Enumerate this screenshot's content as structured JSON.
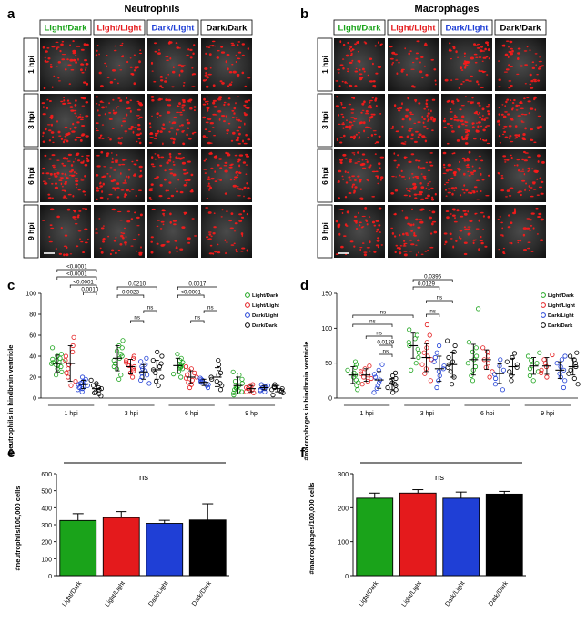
{
  "panel_labels": [
    "a",
    "b",
    "c",
    "d",
    "e",
    "f"
  ],
  "image_panels": [
    {
      "title": "Neutrophils",
      "conditions": [
        "Light/Dark",
        "Light/Light",
        "Dark/Light",
        "Dark/Dark"
      ],
      "timepoints": [
        "1 hpi",
        "3 hpi",
        "6 hpi",
        "9 hpi"
      ]
    },
    {
      "title": "Macrophages",
      "conditions": [
        "Light/Dark",
        "Light/Light",
        "Dark/Light",
        "Dark/Dark"
      ],
      "timepoints": [
        "1 hpi",
        "3 hpi",
        "6 hpi",
        "9 hpi"
      ]
    }
  ],
  "colors": {
    "Light/Dark": "#1aa31a",
    "Light/Light": "#e41a1c",
    "Dark/Light": "#1f3fd6",
    "Dark/Dark": "#000000"
  },
  "chart_data": [
    {
      "type": "scatter",
      "ylabel": "#neutrophils in hindbrain ventricle",
      "ylim": [
        0,
        100
      ],
      "yticks": [
        "0",
        "20",
        "40",
        "60",
        "80",
        "100"
      ],
      "groups": [
        "1 hpi",
        "3 hpi",
        "6 hpi",
        "9 hpi"
      ],
      "legend": [
        "Light/Dark",
        "Light/Light",
        "Dark/Light",
        "Dark/Dark"
      ],
      "legend_position": "top-right",
      "series": [
        {
          "name": "Light/Dark",
          "groups": [
            {
              "points": [
                22,
                25,
                28,
                30,
                31,
                32,
                33,
                34,
                35,
                36,
                37,
                38,
                40,
                42,
                48
              ],
              "mean": 33,
              "sd": 8
            },
            {
              "points": [
                18,
                22,
                28,
                30,
                33,
                36,
                38,
                40,
                42,
                45,
                48,
                50,
                55
              ],
              "mean": 38,
              "sd": 12
            },
            {
              "points": [
                20,
                23,
                25,
                28,
                29,
                30,
                31,
                32,
                34,
                36,
                38,
                42
              ],
              "mean": 31,
              "sd": 7
            },
            {
              "points": [
                3,
                5,
                6,
                7,
                8,
                9,
                10,
                11,
                12,
                14,
                16,
                18,
                22,
                25
              ],
              "mean": 12,
              "sd": 8
            }
          ]
        },
        {
          "name": "Light/Light",
          "groups": [
            {
              "points": [
                12,
                16,
                20,
                24,
                28,
                32,
                36,
                40,
                44,
                50,
                58
              ],
              "mean": 33,
              "sd": 17
            },
            {
              "points": [
                20,
                24,
                26,
                28,
                30,
                31,
                32,
                34,
                36,
                38,
                40
              ],
              "mean": 30,
              "sd": 7
            },
            {
              "points": [
                10,
                13,
                15,
                17,
                19,
                20,
                22,
                24,
                26,
                28,
                30
              ],
              "mean": 20,
              "sd": 6
            },
            {
              "points": [
                5,
                6,
                7,
                8,
                9,
                10,
                11,
                12,
                13
              ],
              "mean": 9,
              "sd": 3
            }
          ]
        },
        {
          "name": "Dark/Light",
          "groups": [
            {
              "points": [
                6,
                8,
                9,
                10,
                11,
                12,
                13,
                14,
                15,
                16,
                18,
                20
              ],
              "mean": 13,
              "sd": 4
            },
            {
              "points": [
                14,
                17,
                20,
                22,
                24,
                26,
                28,
                30,
                32,
                35,
                38
              ],
              "mean": 25,
              "sd": 7
            },
            {
              "points": [
                10,
                12,
                13,
                14,
                15,
                16,
                17,
                18,
                19
              ],
              "mean": 15,
              "sd": 3
            },
            {
              "points": [
                6,
                7,
                8,
                9,
                10,
                11,
                12,
                13
              ],
              "mean": 10,
              "sd": 2
            }
          ]
        },
        {
          "name": "Dark/Dark",
          "groups": [
            {
              "points": [
                2,
                4,
                5,
                6,
                8,
                9,
                10,
                12,
                14,
                17
              ],
              "mean": 9,
              "sd": 5
            },
            {
              "points": [
                12,
                16,
                20,
                24,
                27,
                30,
                33,
                36,
                40,
                44
              ],
              "mean": 27,
              "sd": 9
            },
            {
              "points": [
                8,
                12,
                14,
                16,
                18,
                20,
                22,
                24,
                28,
                32,
                36
              ],
              "mean": 20,
              "sd": 9
            },
            {
              "points": [
                3,
                5,
                6,
                7,
                8,
                9,
                10,
                11,
                13
              ],
              "mean": 9,
              "sd": 3
            }
          ]
        }
      ],
      "comparisons": [
        {
          "group": 0,
          "from": 0,
          "to": 3,
          "label": "<0.0001"
        },
        {
          "group": 0,
          "from": 0,
          "to": 3,
          "label": "<0.0001"
        },
        {
          "group": 0,
          "from": 1,
          "to": 2,
          "label": "<0.0001"
        },
        {
          "group": 0,
          "from": 1,
          "to": 3,
          "label": "0.0010"
        },
        {
          "group": 1,
          "from": 0,
          "to": 3,
          "label": "0.0210"
        },
        {
          "group": 1,
          "from": 0,
          "to": 2,
          "label": "0.0023"
        },
        {
          "group": 1,
          "from": 1,
          "to": 2,
          "label": "ns"
        },
        {
          "group": 1,
          "from": 1,
          "to": 3,
          "label": "ns"
        },
        {
          "group": 2,
          "from": 0,
          "to": 3,
          "label": "0.0017"
        },
        {
          "group": 2,
          "from": 0,
          "to": 2,
          "label": "<0.0001"
        },
        {
          "group": 2,
          "from": 1,
          "to": 2,
          "label": "ns"
        },
        {
          "group": 2,
          "from": 1,
          "to": 3,
          "label": "ns"
        }
      ]
    },
    {
      "type": "scatter",
      "ylabel": "#macrophages in hindbrain ventricle",
      "ylim": [
        0,
        150
      ],
      "yticks": [
        "0",
        "50",
        "100",
        "150"
      ],
      "groups": [
        "1 hpi",
        "3 hpi",
        "6 hpi",
        "9 hpi"
      ],
      "legend": [
        "Light/Dark",
        "Light/Light",
        "Dark/Light",
        "Dark/Dark"
      ],
      "legend_position": "top-right",
      "series": [
        {
          "name": "Light/Dark",
          "groups": [
            {
              "points": [
                12,
                18,
                22,
                26,
                30,
                33,
                36,
                40,
                44,
                48,
                52
              ],
              "mean": 33,
              "sd": 12
            },
            {
              "points": [
                40,
                50,
                58,
                65,
                70,
                75,
                80,
                85,
                90,
                98
              ],
              "mean": 75,
              "sd": 18
            },
            {
              "points": [
                25,
                32,
                40,
                45,
                50,
                55,
                60,
                66,
                72,
                80,
                128
              ],
              "mean": 55,
              "sd": 22
            },
            {
              "points": [
                25,
                32,
                38,
                42,
                46,
                50,
                54,
                60,
                65
              ],
              "mean": 46,
              "sd": 12
            }
          ]
        },
        {
          "name": "Light/Light",
          "groups": [
            {
              "points": [
                20,
                24,
                28,
                30,
                33,
                35,
                38,
                42,
                46
              ],
              "mean": 33,
              "sd": 9
            },
            {
              "points": [
                25,
                35,
                42,
                48,
                55,
                60,
                65,
                72,
                80,
                90,
                105
              ],
              "mean": 58,
              "sd": 20
            },
            {
              "points": [
                30,
                38,
                44,
                50,
                55,
                60,
                66,
                72
              ],
              "mean": 55,
              "sd": 14
            },
            {
              "points": [
                30,
                36,
                40,
                45,
                50,
                55,
                62
              ],
              "mean": 46,
              "sd": 12
            }
          ]
        },
        {
          "name": "Dark/Light",
          "groups": [
            {
              "points": [
                8,
                14,
                18,
                22,
                26,
                30,
                34,
                40,
                48
              ],
              "mean": 26,
              "sd": 12
            },
            {
              "points": [
                15,
                25,
                32,
                38,
                42,
                46,
                52,
                58,
                65,
                75
              ],
              "mean": 42,
              "sd": 18
            },
            {
              "points": [
                12,
                20,
                28,
                34,
                40,
                46,
                55
              ],
              "mean": 35,
              "sd": 14
            },
            {
              "points": [
                15,
                25,
                30,
                35,
                40,
                45,
                50,
                55,
                60
              ],
              "mean": 40,
              "sd": 12
            }
          ]
        },
        {
          "name": "Dark/Dark",
          "groups": [
            {
              "points": [
                8,
                12,
                15,
                18,
                20,
                22,
                24,
                28,
                32,
                36
              ],
              "mean": 20,
              "sd": 8
            },
            {
              "points": [
                20,
                30,
                38,
                44,
                48,
                52,
                58,
                66,
                75,
                82
              ],
              "mean": 48,
              "sd": 18
            },
            {
              "points": [
                25,
                32,
                38,
                44,
                48,
                52,
                58,
                64
              ],
              "mean": 45,
              "sd": 12
            },
            {
              "points": [
                20,
                28,
                35,
                40,
                45,
                50,
                55,
                60,
                65
              ],
              "mean": 45,
              "sd": 12
            }
          ]
        }
      ],
      "comparisons": [
        {
          "group": 1,
          "from": 0,
          "to": 3,
          "label": "0.0396"
        },
        {
          "group": 1,
          "from": 0,
          "to": 2,
          "label": "0.0129"
        },
        {
          "group": 1,
          "from": 1,
          "to": 3,
          "label": "ns"
        },
        {
          "group": 1,
          "from": 1,
          "to": 2,
          "label": "ns"
        },
        {
          "group": 0,
          "from": 0,
          "to": 4,
          "label": "ns"
        },
        {
          "group": 0,
          "from": 0,
          "to": 5,
          "label": "ns"
        },
        {
          "group": 0,
          "from": 1,
          "to": 5,
          "label": "ns"
        },
        {
          "group": 0,
          "from": 2,
          "to": 5,
          "label": "0.0129"
        },
        {
          "group": 0,
          "from": 2,
          "to": 5,
          "label": "ns"
        }
      ]
    },
    {
      "type": "bar",
      "ylabel": "#neutrophils/100,000 cells",
      "ylim": [
        0,
        600
      ],
      "yticks": [
        "0",
        "100",
        "200",
        "300",
        "400",
        "500",
        "600"
      ],
      "categories": [
        "Light/Dark",
        "Light/Light",
        "Dark/Light",
        "Dark/Dark"
      ],
      "values": [
        325,
        342,
        308,
        328
      ],
      "errors": [
        40,
        35,
        18,
        95
      ],
      "annotation": "ns"
    },
    {
      "type": "bar",
      "ylabel": "#macrophages/100,000 cells",
      "ylim": [
        0,
        300
      ],
      "yticks": [
        "0",
        "100",
        "200",
        "300"
      ],
      "categories": [
        "Light/Dark",
        "Light/Light",
        "Dark/Light",
        "Dark/Dark"
      ],
      "values": [
        228,
        243,
        228,
        240
      ],
      "errors": [
        15,
        10,
        18,
        8
      ],
      "annotation": "ns"
    }
  ]
}
